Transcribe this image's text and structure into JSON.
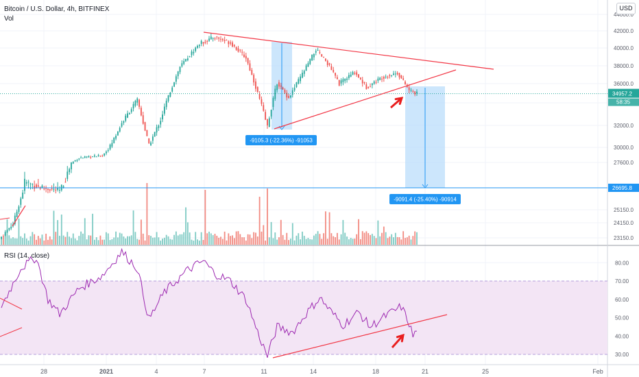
{
  "header": {
    "symbol_line": "Bitcoin / U.S. Dollar, 4h, BITFINEX",
    "volume_label": "Vol",
    "currency_button": "USD"
  },
  "rsi_header": "RSI (14, close)",
  "colors": {
    "up": "#26a69a",
    "down": "#ef5350",
    "vol_up": "#80cbc4",
    "vol_down": "#f28b82",
    "trendline": "#f23645",
    "measure_fill": "#bbdefb",
    "measure_line": "#2196f3",
    "support": "#2196f3",
    "rsi_line": "#9c27b0",
    "rsi_band": "#f3e5f5",
    "last_price": "#26a69a",
    "arrow": "#e91e1e"
  },
  "chart_data": [
    {
      "type": "candlestick",
      "title": "Bitcoin / U.S. Dollar, 4h, BITFINEX",
      "x_tick_labels": [
        "28",
        "2021",
        "4",
        "7",
        "11",
        "14",
        "18",
        "21",
        "25",
        "Feb"
      ],
      "price_axis_labels": [
        "44000.0",
        "42000.0",
        "40000.0",
        "38000.0",
        "36000.0",
        "32000.0",
        "30000.0",
        "27600.0",
        "25150.0",
        "24150.0",
        "23150.0"
      ],
      "ylim": [
        22500,
        45000
      ],
      "last_price": "34957.2",
      "countdown": "58:35",
      "support_level": "26695.8",
      "ohlc_keypoints": [
        {
          "i": 0,
          "price": 23200
        },
        {
          "i": 6,
          "price": 24100
        },
        {
          "i": 12,
          "price": 26900
        },
        {
          "i": 20,
          "price": 26700
        },
        {
          "i": 30,
          "price": 26500
        },
        {
          "i": 40,
          "price": 28300
        },
        {
          "i": 52,
          "price": 28700
        },
        {
          "i": 62,
          "price": 32200
        },
        {
          "i": 70,
          "price": 34300
        },
        {
          "i": 76,
          "price": 30200
        },
        {
          "i": 82,
          "price": 32500
        },
        {
          "i": 92,
          "price": 37900
        },
        {
          "i": 102,
          "price": 40500
        },
        {
          "i": 110,
          "price": 41300
        },
        {
          "i": 118,
          "price": 40600
        },
        {
          "i": 126,
          "price": 38900
        },
        {
          "i": 132,
          "price": 35000
        },
        {
          "i": 137,
          "price": 31900
        },
        {
          "i": 142,
          "price": 36100
        },
        {
          "i": 148,
          "price": 34500
        },
        {
          "i": 154,
          "price": 36700
        },
        {
          "i": 162,
          "price": 39800
        },
        {
          "i": 168,
          "price": 38300
        },
        {
          "i": 174,
          "price": 36000
        },
        {
          "i": 182,
          "price": 37300
        },
        {
          "i": 188,
          "price": 35600
        },
        {
          "i": 196,
          "price": 36700
        },
        {
          "i": 204,
          "price": 37200
        },
        {
          "i": 210,
          "price": 35300
        },
        {
          "i": 214,
          "price": 34957
        }
      ],
      "annotations": [
        {
          "text": "-9105.3 (-22.36%) -91053",
          "kind": "price-range"
        },
        {
          "text": "-9091.4 (-25.40%) -90914",
          "kind": "price-range"
        }
      ]
    },
    {
      "type": "line",
      "title": "RSI (14, close)",
      "ylim": [
        27,
        90
      ],
      "y_tick_labels": [
        "80.00",
        "70.00",
        "60.00",
        "50.00",
        "40.00",
        "30.00"
      ],
      "bands": [
        30,
        70
      ],
      "keypoints": [
        {
          "i": 0,
          "rsi": 56
        },
        {
          "i": 10,
          "rsi": 77
        },
        {
          "i": 18,
          "rsi": 83
        },
        {
          "i": 24,
          "rsi": 60
        },
        {
          "i": 30,
          "rsi": 52
        },
        {
          "i": 40,
          "rsi": 66
        },
        {
          "i": 52,
          "rsi": 73
        },
        {
          "i": 62,
          "rsi": 86
        },
        {
          "i": 70,
          "rsi": 77
        },
        {
          "i": 76,
          "rsi": 49
        },
        {
          "i": 84,
          "rsi": 64
        },
        {
          "i": 96,
          "rsi": 76
        },
        {
          "i": 104,
          "rsi": 81
        },
        {
          "i": 110,
          "rsi": 74
        },
        {
          "i": 118,
          "rsi": 70
        },
        {
          "i": 126,
          "rsi": 60
        },
        {
          "i": 132,
          "rsi": 42
        },
        {
          "i": 137,
          "rsi": 29
        },
        {
          "i": 142,
          "rsi": 45
        },
        {
          "i": 150,
          "rsi": 42
        },
        {
          "i": 156,
          "rsi": 51
        },
        {
          "i": 164,
          "rsi": 61
        },
        {
          "i": 170,
          "rsi": 53
        },
        {
          "i": 176,
          "rsi": 46
        },
        {
          "i": 184,
          "rsi": 53
        },
        {
          "i": 190,
          "rsi": 45
        },
        {
          "i": 198,
          "rsi": 51
        },
        {
          "i": 206,
          "rsi": 56
        },
        {
          "i": 210,
          "rsi": 47
        },
        {
          "i": 212,
          "rsi": 40
        },
        {
          "i": 214,
          "rsi": 43
        }
      ]
    }
  ]
}
